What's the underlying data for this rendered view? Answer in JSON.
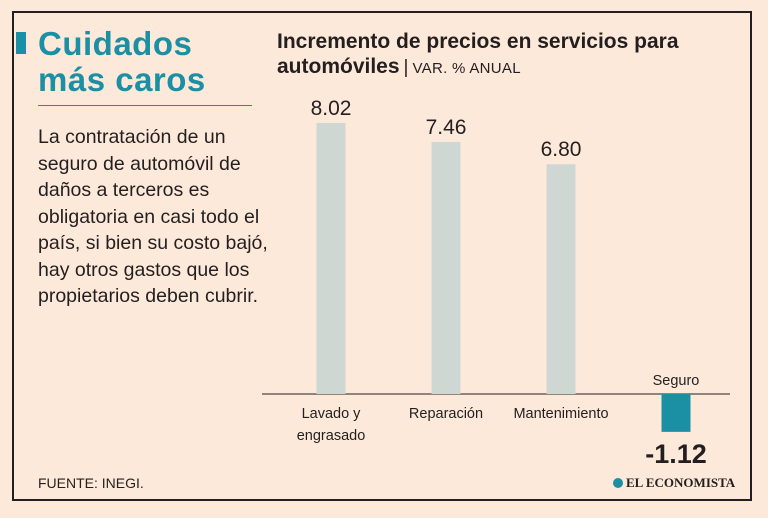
{
  "headline": {
    "line1": "Cuidados",
    "line2": "más caros"
  },
  "body_text": "La contratación de un seguro de automóvil de daños a terceros es obligatoria en casi todo el país, si bien su costo bajó, hay otros gastos que los propietarios deben cubrir.",
  "source": "FUENTE: INEGI.",
  "brand": "EL ECONOMISTA",
  "colors": {
    "accent": "#1b8fa3",
    "positive_bar": "#cfd7d2",
    "negative_bar": "#1b8fa3",
    "background": "#fce9da"
  },
  "chart_data": {
    "type": "bar",
    "title": "Incremento de precios en servicios para automóviles",
    "unit_label": "VAR. % ANUAL",
    "categories": [
      "Lavado y engrasado",
      "Reparación",
      "Mantenimiento",
      "Seguro"
    ],
    "category_lines": [
      [
        "Lavado y",
        "engrasado"
      ],
      [
        "Reparación"
      ],
      [
        "Mantenimiento"
      ],
      [
        "Seguro"
      ]
    ],
    "values": [
      8.02,
      7.46,
      6.8,
      -1.12
    ],
    "value_labels": [
      "8.02",
      "7.46",
      "6.80",
      "-1.12"
    ],
    "xlabel": "",
    "ylabel": "",
    "ylim": [
      -1.12,
      8.02
    ],
    "grid": false,
    "legend": "none"
  }
}
